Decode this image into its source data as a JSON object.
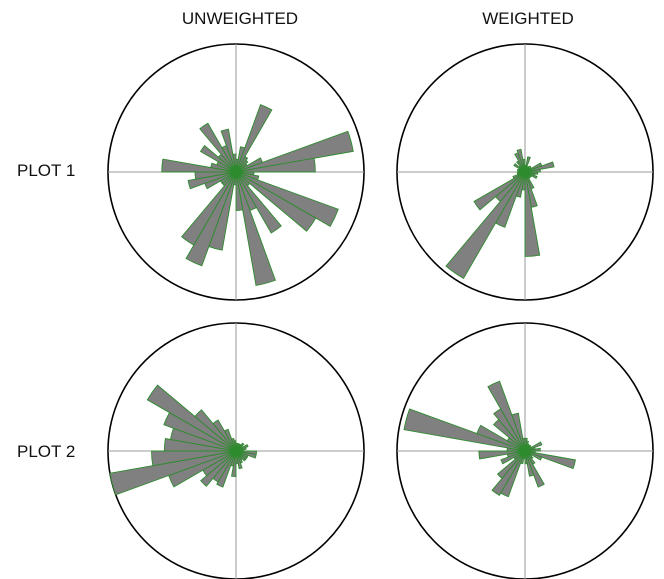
{
  "columns": [
    "UNWEIGHTED",
    "WEIGHTED"
  ],
  "rows": [
    "PLOT 1",
    "PLOT 2"
  ],
  "colors": {
    "petal_fill": "#808080",
    "petal_stroke": "#2e8b2e",
    "circle": "#000000",
    "axis": "#9a9a9a"
  },
  "chart_data": [
    {
      "type": "rose",
      "row": "PLOT 1",
      "column": "UNWEIGHTED",
      "bin_width_deg": 10,
      "rmax": 1.0,
      "bins": [
        {
          "angle": 5,
          "r": 0.1
        },
        {
          "angle": 15,
          "r": 0.2
        },
        {
          "angle": 25,
          "r": 0.56
        },
        {
          "angle": 35,
          "r": 0.14
        },
        {
          "angle": 45,
          "r": 0.12
        },
        {
          "angle": 55,
          "r": 0.1
        },
        {
          "angle": 65,
          "r": 0.22
        },
        {
          "angle": 75,
          "r": 0.93
        },
        {
          "angle": 85,
          "r": 0.62
        },
        {
          "angle": 95,
          "r": 0.14
        },
        {
          "angle": 105,
          "r": 0.18
        },
        {
          "angle": 115,
          "r": 0.85
        },
        {
          "angle": 125,
          "r": 0.72
        },
        {
          "angle": 135,
          "r": 0.14
        },
        {
          "angle": 145,
          "r": 0.55
        },
        {
          "angle": 155,
          "r": 0.32
        },
        {
          "angle": 165,
          "r": 0.9
        },
        {
          "angle": 175,
          "r": 0.3
        },
        {
          "angle": 185,
          "r": 0.1
        },
        {
          "angle": 195,
          "r": 0.62
        },
        {
          "angle": 205,
          "r": 0.78
        },
        {
          "angle": 215,
          "r": 0.66
        },
        {
          "angle": 225,
          "r": 0.14
        },
        {
          "angle": 235,
          "r": 0.14
        },
        {
          "angle": 245,
          "r": 0.26
        },
        {
          "angle": 255,
          "r": 0.38
        },
        {
          "angle": 265,
          "r": 0.32
        },
        {
          "angle": 275,
          "r": 0.58
        },
        {
          "angle": 285,
          "r": 0.2
        },
        {
          "angle": 295,
          "r": 0.16
        },
        {
          "angle": 305,
          "r": 0.32
        },
        {
          "angle": 315,
          "r": 0.18
        },
        {
          "angle": 325,
          "r": 0.44
        },
        {
          "angle": 335,
          "r": 0.22
        },
        {
          "angle": 345,
          "r": 0.34
        },
        {
          "angle": 355,
          "r": 0.14
        }
      ]
    },
    {
      "type": "rose",
      "row": "PLOT 1",
      "column": "WEIGHTED",
      "bin_width_deg": 10,
      "rmax": 1.0,
      "bins": [
        {
          "angle": 5,
          "r": 0.05
        },
        {
          "angle": 15,
          "r": 0.12
        },
        {
          "angle": 25,
          "r": 0.04
        },
        {
          "angle": 35,
          "r": 0.05
        },
        {
          "angle": 45,
          "r": 0.06
        },
        {
          "angle": 55,
          "r": 0.05
        },
        {
          "angle": 65,
          "r": 0.14
        },
        {
          "angle": 75,
          "r": 0.23
        },
        {
          "angle": 85,
          "r": 0.12
        },
        {
          "angle": 95,
          "r": 0.1
        },
        {
          "angle": 105,
          "r": 0.08
        },
        {
          "angle": 115,
          "r": 0.1
        },
        {
          "angle": 125,
          "r": 0.06
        },
        {
          "angle": 135,
          "r": 0.05
        },
        {
          "angle": 145,
          "r": 0.06
        },
        {
          "angle": 155,
          "r": 0.14
        },
        {
          "angle": 165,
          "r": 0.28
        },
        {
          "angle": 175,
          "r": 0.66
        },
        {
          "angle": 185,
          "r": 0.14
        },
        {
          "angle": 195,
          "r": 0.2
        },
        {
          "angle": 205,
          "r": 0.46
        },
        {
          "angle": 215,
          "r": 0.96
        },
        {
          "angle": 225,
          "r": 0.3
        },
        {
          "angle": 235,
          "r": 0.46
        },
        {
          "angle": 245,
          "r": 0.1
        },
        {
          "angle": 255,
          "r": 0.06
        },
        {
          "angle": 265,
          "r": 0.06
        },
        {
          "angle": 275,
          "r": 0.05
        },
        {
          "angle": 285,
          "r": 0.06
        },
        {
          "angle": 295,
          "r": 0.05
        },
        {
          "angle": 305,
          "r": 0.1
        },
        {
          "angle": 315,
          "r": 0.06
        },
        {
          "angle": 325,
          "r": 0.1
        },
        {
          "angle": 335,
          "r": 0.16
        },
        {
          "angle": 345,
          "r": 0.18
        },
        {
          "angle": 355,
          "r": 0.1
        }
      ]
    },
    {
      "type": "rose",
      "row": "PLOT 2",
      "column": "UNWEIGHTED",
      "bin_width_deg": 10,
      "rmax": 1.0,
      "bins": [
        {
          "angle": 5,
          "r": 0.06
        },
        {
          "angle": 15,
          "r": 0.06
        },
        {
          "angle": 25,
          "r": 0.06
        },
        {
          "angle": 35,
          "r": 0.06
        },
        {
          "angle": 45,
          "r": 0.08
        },
        {
          "angle": 55,
          "r": 0.06
        },
        {
          "angle": 65,
          "r": 0.1
        },
        {
          "angle": 75,
          "r": 0.08
        },
        {
          "angle": 85,
          "r": 0.06
        },
        {
          "angle": 95,
          "r": 0.16
        },
        {
          "angle": 105,
          "r": 0.16
        },
        {
          "angle": 115,
          "r": 0.1
        },
        {
          "angle": 125,
          "r": 0.1
        },
        {
          "angle": 135,
          "r": 0.1
        },
        {
          "angle": 145,
          "r": 0.08
        },
        {
          "angle": 155,
          "r": 0.1
        },
        {
          "angle": 165,
          "r": 0.14
        },
        {
          "angle": 175,
          "r": 0.1
        },
        {
          "angle": 185,
          "r": 0.2
        },
        {
          "angle": 195,
          "r": 0.12
        },
        {
          "angle": 205,
          "r": 0.3
        },
        {
          "angle": 215,
          "r": 0.28
        },
        {
          "angle": 225,
          "r": 0.36
        },
        {
          "angle": 235,
          "r": 0.3
        },
        {
          "angle": 245,
          "r": 0.56
        },
        {
          "angle": 255,
          "r": 1.0
        },
        {
          "angle": 265,
          "r": 0.66
        },
        {
          "angle": 275,
          "r": 0.56
        },
        {
          "angle": 285,
          "r": 0.52
        },
        {
          "angle": 295,
          "r": 0.6
        },
        {
          "angle": 305,
          "r": 0.8
        },
        {
          "angle": 315,
          "r": 0.42
        },
        {
          "angle": 325,
          "r": 0.28
        },
        {
          "angle": 335,
          "r": 0.18
        },
        {
          "angle": 345,
          "r": 0.1
        },
        {
          "angle": 355,
          "r": 0.08
        }
      ]
    },
    {
      "type": "rose",
      "row": "PLOT 2",
      "column": "WEIGHTED",
      "bin_width_deg": 10,
      "rmax": 1.0,
      "bins": [
        {
          "angle": 5,
          "r": 0.1
        },
        {
          "angle": 15,
          "r": 0.08
        },
        {
          "angle": 25,
          "r": 0.06
        },
        {
          "angle": 35,
          "r": 0.05
        },
        {
          "angle": 45,
          "r": 0.06
        },
        {
          "angle": 55,
          "r": 0.05
        },
        {
          "angle": 65,
          "r": 0.14
        },
        {
          "angle": 75,
          "r": 0.08
        },
        {
          "angle": 85,
          "r": 0.12
        },
        {
          "angle": 95,
          "r": 0.08
        },
        {
          "angle": 105,
          "r": 0.4
        },
        {
          "angle": 115,
          "r": 0.14
        },
        {
          "angle": 125,
          "r": 0.06
        },
        {
          "angle": 135,
          "r": 0.08
        },
        {
          "angle": 145,
          "r": 0.12
        },
        {
          "angle": 155,
          "r": 0.3
        },
        {
          "angle": 165,
          "r": 0.2
        },
        {
          "angle": 175,
          "r": 0.1
        },
        {
          "angle": 185,
          "r": 0.06
        },
        {
          "angle": 195,
          "r": 0.1
        },
        {
          "angle": 205,
          "r": 0.38
        },
        {
          "angle": 215,
          "r": 0.4
        },
        {
          "angle": 225,
          "r": 0.28
        },
        {
          "angle": 235,
          "r": 0.1
        },
        {
          "angle": 245,
          "r": 0.2
        },
        {
          "angle": 255,
          "r": 0.14
        },
        {
          "angle": 265,
          "r": 0.36
        },
        {
          "angle": 275,
          "r": 0.14
        },
        {
          "angle": 285,
          "r": 0.96
        },
        {
          "angle": 295,
          "r": 0.4
        },
        {
          "angle": 305,
          "r": 0.16
        },
        {
          "angle": 315,
          "r": 0.32
        },
        {
          "angle": 325,
          "r": 0.38
        },
        {
          "angle": 335,
          "r": 0.58
        },
        {
          "angle": 345,
          "r": 0.3
        },
        {
          "angle": 355,
          "r": 0.1
        }
      ]
    }
  ]
}
